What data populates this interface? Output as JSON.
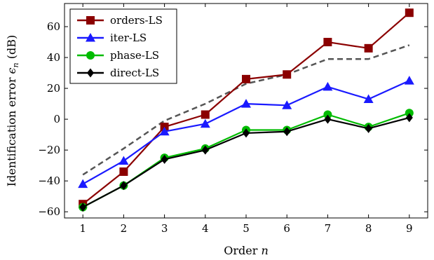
{
  "chart_data": {
    "type": "line",
    "title": "",
    "xlabel": "Order",
    "xlabel_var": "n",
    "ylabel": "Identification error",
    "ylabel_var": "ϵ",
    "ylabel_sub": "n",
    "ylabel_unit": "(dB)",
    "x": [
      1,
      2,
      3,
      4,
      5,
      6,
      7,
      8,
      9
    ],
    "xlim": [
      0.55,
      9.45
    ],
    "ylim": [
      -64,
      75
    ],
    "xticks": [
      "1",
      "2",
      "3",
      "4",
      "5",
      "6",
      "7",
      "8",
      "9"
    ],
    "yticks": [
      -60,
      -40,
      -20,
      0,
      20,
      40,
      60
    ],
    "ytick_labels": [
      "−60",
      "−40",
      "−20",
      "0",
      "20",
      "40",
      "60"
    ],
    "legend_position": "top-left",
    "grid": false,
    "series": [
      {
        "name": "orders-LS",
        "color": "#8b0000",
        "marker": "square",
        "values": [
          -55,
          -34,
          -5,
          3,
          26,
          29,
          50,
          46,
          69
        ]
      },
      {
        "name": "iter-LS",
        "color": "#1a1aff",
        "marker": "triangle",
        "values": [
          -42,
          -27,
          -8,
          -3,
          10,
          9,
          21,
          13,
          25
        ]
      },
      {
        "name": "phase-LS",
        "color": "#00bb00",
        "marker": "circle",
        "values": [
          -57,
          -43,
          -25,
          -19,
          -7,
          -7,
          3,
          -5,
          4
        ]
      },
      {
        "name": "direct-LS",
        "color": "#000000",
        "marker": "diamond",
        "values": [
          -57,
          -43,
          -26,
          -20,
          -9,
          -8,
          0,
          -6,
          1
        ]
      },
      {
        "name": "",
        "color": "#555555",
        "marker": "none",
        "dashed": true,
        "values": [
          -36,
          -19,
          -1,
          10,
          23,
          29,
          39,
          39,
          48
        ]
      }
    ]
  }
}
